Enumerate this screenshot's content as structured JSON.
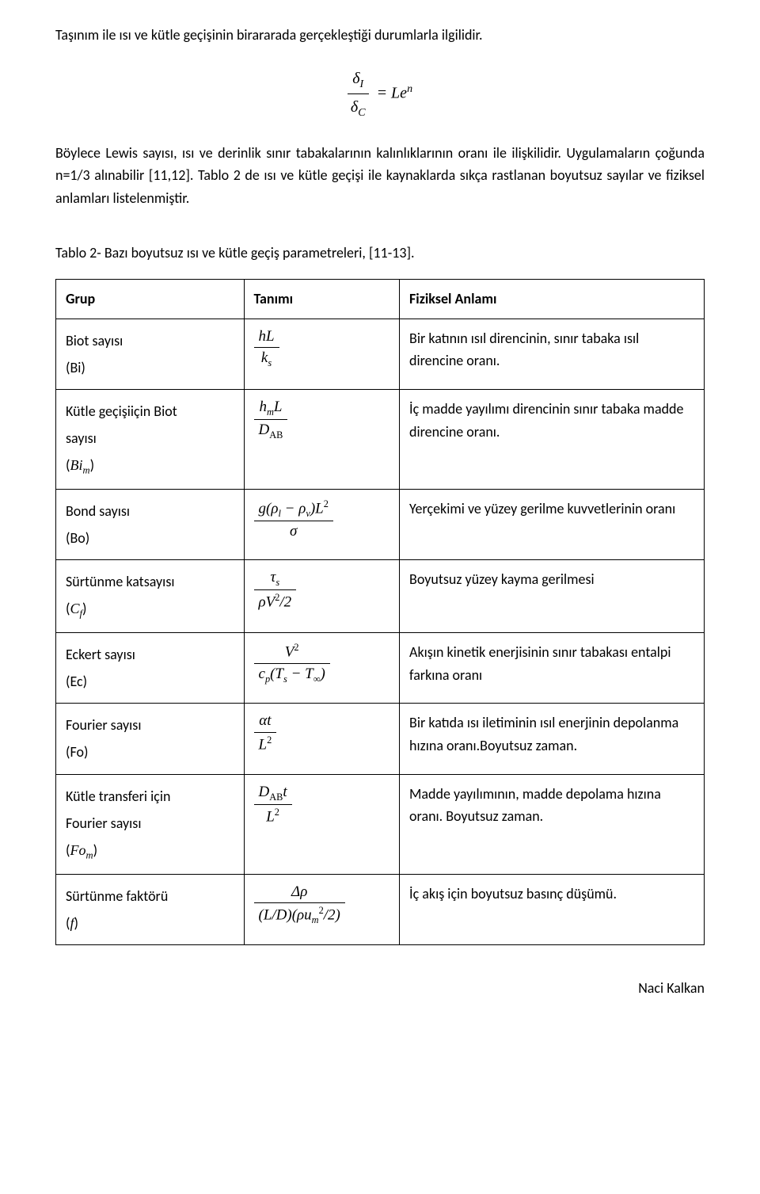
{
  "intro": {
    "p1": "Taşınım ile ısı ve kütle geçişinin birararada gerçekleştiği durumlarla ilgilidir.",
    "eq_lhs_num": "δ",
    "eq_lhs_num_sub": "I",
    "eq_lhs_den": "δ",
    "eq_lhs_den_sub": "C",
    "eq_rhs_coeff": "= Le",
    "eq_rhs_exp": "n",
    "p2": "Böylece Lewis sayısı, ısı ve derinlik sınır tabakalarının kalınlıklarının oranı ile ilişkilidir. Uygulamaların çoğunda n=1/3 alınabilir [11,12]. Tablo 2 de ısı ve kütle geçişi ile kaynaklarda sıkça rastlanan boyutsuz sayılar ve fiziksel anlamları listelenmiştir."
  },
  "table_caption": "Tablo 2- Bazı boyutsuz ısı ve kütle geçiş parametreleri, [11-13].",
  "headers": {
    "group": "Grup",
    "def": "Tanımı",
    "meaning": "Fiziksel Anlamı"
  },
  "rows": [
    {
      "group_line1": "Biot sayısı",
      "group_line2": "(Bi)",
      "f_num": "hL",
      "f_den_base": "k",
      "f_den_sub": "s",
      "meaning": "Bir katının ısıl direncinin, sınır tabaka ısıl direncine oranı."
    },
    {
      "group_line1": "Kütle geçişiiçin Biot",
      "group_line2": "sayısı",
      "group_line3_prefix": "(",
      "group_line3_sym": "Bi",
      "group_line3_sub": "m",
      "group_line3_suffix": ")",
      "f_num_a": "h",
      "f_num_a_sub": "m",
      "f_num_b": "L",
      "f_den": "D",
      "f_den_sub": "AB",
      "meaning": "İç madde yayılımı direncinin sınır tabaka madde direncine oranı."
    },
    {
      "group_line1": "Bond sayısı",
      "group_line2": "(Bo)",
      "f_num_raw": "g(ρ<span class=\"sub\">l</span> − ρ<span class=\"sub\">v</span>)L<span class=\"sup\">2</span>",
      "f_den_raw": "σ",
      "meaning": "Yerçekimi ve yüzey gerilme kuvvetlerinin oranı"
    },
    {
      "group_line1": "Sürtünme katsayısı",
      "group_line2_prefix": "(",
      "group_line2_sym": "C",
      "group_line2_sub": "f",
      "group_line2_suffix": ")",
      "f_num_raw": "τ<span class=\"sub\">s</span>",
      "f_den_raw": "ρV<span class=\"sup\">2</span>/2",
      "meaning": "Boyutsuz yüzey kayma gerilmesi"
    },
    {
      "group_line1": "Eckert sayısı",
      "group_line2": "(Ec)",
      "f_num_raw": "V<span class=\"sup\">2</span>",
      "f_den_raw": "c<span class=\"sub\">p</span>(T<span class=\"sub\">s</span> − T<span class=\"sub\">∞</span>)",
      "meaning": "Akışın kinetik enerjisinin sınır tabakası entalpi farkına oranı"
    },
    {
      "group_line1": "Fourier sayısı",
      "group_line2": "(Fo)",
      "f_num_raw": "αt",
      "f_den_raw": "L<span class=\"sup\">2</span>",
      "meaning": "Bir katıda ısı iletiminin ısıl enerjinin depolanma hızına oranı.Boyutsuz zaman."
    },
    {
      "group_line1": "Kütle transferi için",
      "group_line2": "Fourier sayısı",
      "group_line3_prefix": "(",
      "group_line3_sym": "Fo",
      "group_line3_sub": "m",
      "group_line3_suffix": ")",
      "f_num_raw": "D<span class=\"sub upright\">AB</span>t",
      "f_den_raw": "L<span class=\"sup\">2</span>",
      "meaning": "Madde yayılımının, madde depolama hızına oranı. Boyutsuz zaman."
    },
    {
      "group_line1": "Sürtünme faktörü",
      "group_line2_prefix": "(",
      "group_line2_sym": "f",
      "group_line2_suffix": ")",
      "f_num_raw": "Δρ",
      "f_den_raw": "(L/D)(ρu<span class=\"sub\">m</span><span class=\"sup\">2</span>/2)",
      "meaning": "İç akış için boyutsuz basınç düşümü."
    }
  ],
  "footer": "Naci Kalkan"
}
